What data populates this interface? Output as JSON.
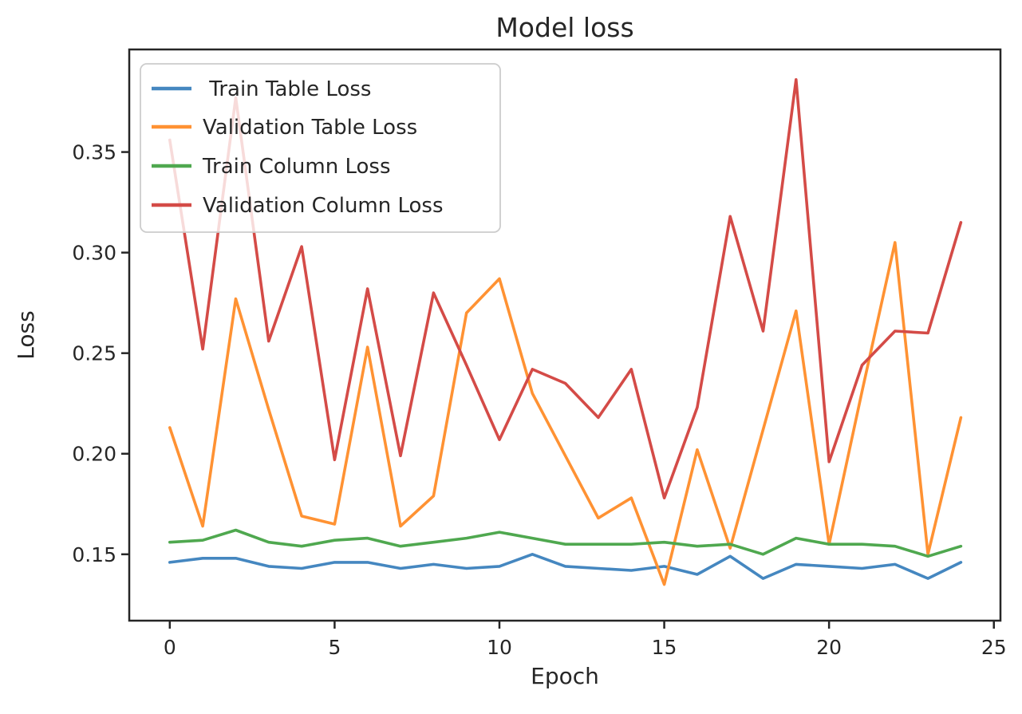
{
  "figure": {
    "title": "Model loss",
    "xlabel": "Epoch",
    "ylabel": "Loss"
  },
  "chart_data": {
    "type": "line",
    "title": "Model loss",
    "xlabel": "Epoch",
    "ylabel": "Loss",
    "grid": false,
    "legend_position": "upper left",
    "legend_frame": {
      "fill": "rgba(255,255,255,0.8)",
      "edge": "#cccccc"
    },
    "xlim": [
      -1.23,
      25.2
    ],
    "ylim": [
      0.117,
      0.401
    ],
    "xticks": [
      0,
      5,
      10,
      15,
      20,
      25
    ],
    "xtick_labels": [
      "0",
      "5",
      "10",
      "15",
      "20",
      "25"
    ],
    "yticks": [
      0.15,
      0.2,
      0.25,
      0.3,
      0.35
    ],
    "ytick_labels": [
      "0.15",
      "0.20",
      "0.25",
      "0.30",
      "0.35"
    ],
    "x": [
      0,
      1,
      2,
      3,
      4,
      5,
      6,
      7,
      8,
      9,
      10,
      11,
      12,
      13,
      14,
      15,
      16,
      17,
      18,
      19,
      20,
      21,
      22,
      23,
      24
    ],
    "series": [
      {
        "name": "Train Table Loss",
        "label": " Train Table Loss",
        "color": "#4587c0",
        "values": [
          0.146,
          0.148,
          0.148,
          0.144,
          0.143,
          0.146,
          0.146,
          0.143,
          0.145,
          0.143,
          0.144,
          0.15,
          0.144,
          0.143,
          0.142,
          0.144,
          0.14,
          0.149,
          0.138,
          0.145,
          0.144,
          0.143,
          0.145,
          0.138,
          0.146
        ]
      },
      {
        "name": "Validation Table Loss",
        "label": "Validation Table Loss",
        "color": "#ff9233",
        "values": [
          0.213,
          0.164,
          0.277,
          0.222,
          0.169,
          0.165,
          0.253,
          0.164,
          0.179,
          0.27,
          0.287,
          0.23,
          0.199,
          0.168,
          0.178,
          0.135,
          0.202,
          0.153,
          0.212,
          0.271,
          0.155,
          0.231,
          0.305,
          0.15,
          0.218
        ]
      },
      {
        "name": "Train Column Loss",
        "label": "Train Column Loss",
        "color": "#4fa84f",
        "values": [
          0.156,
          0.157,
          0.162,
          0.156,
          0.154,
          0.157,
          0.158,
          0.154,
          0.156,
          0.158,
          0.161,
          0.158,
          0.155,
          0.155,
          0.155,
          0.156,
          0.154,
          0.155,
          0.15,
          0.158,
          0.155,
          0.155,
          0.154,
          0.149,
          0.154
        ]
      },
      {
        "name": "Validation Column Loss",
        "label": "Validation Column Loss",
        "color": "#d44b47",
        "values": [
          0.356,
          0.252,
          0.377,
          0.256,
          0.303,
          0.197,
          0.282,
          0.199,
          0.28,
          0.244,
          0.207,
          0.242,
          0.235,
          0.218,
          0.242,
          0.178,
          0.223,
          0.318,
          0.261,
          0.386,
          0.196,
          0.244,
          0.261,
          0.26,
          0.315
        ]
      }
    ]
  }
}
